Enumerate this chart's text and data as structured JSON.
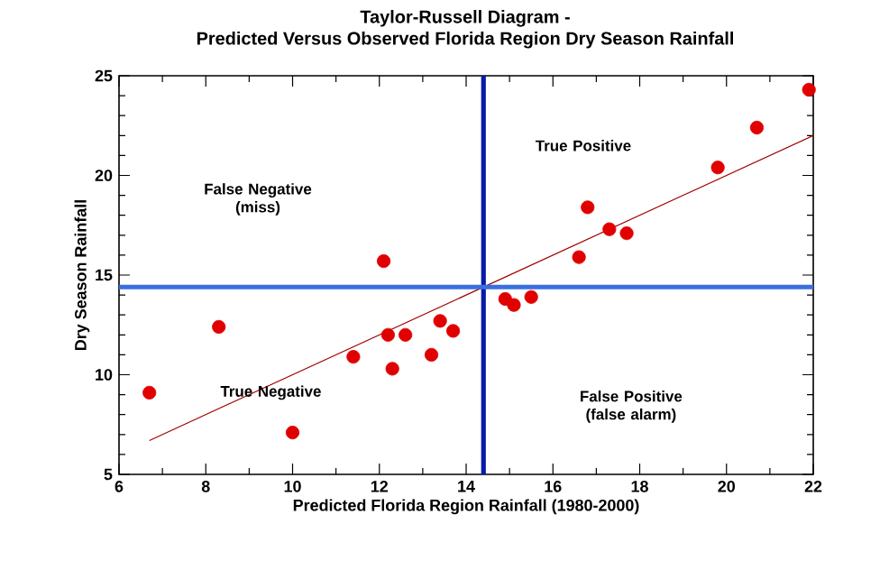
{
  "chart_data": {
    "type": "scatter",
    "title": "Taylor-Russell Diagram -",
    "subtitle": "Predicted Versus Observed Florida Region Dry Season Rainfall",
    "xlabel": "Predicted Florida Region Rainfall (1980-2000)",
    "ylabel": "Dry Season Rainfall",
    "xlim": [
      6,
      22
    ],
    "ylim": [
      5,
      25
    ],
    "xticks": [
      6,
      8,
      10,
      12,
      14,
      16,
      18,
      20,
      22
    ],
    "yticks": [
      5,
      10,
      15,
      20,
      25
    ],
    "series": [
      {
        "marker": "circle",
        "color": "#e00000",
        "x": [
          6.7,
          8.3,
          10.0,
          11.4,
          12.1,
          12.2,
          12.6,
          12.3,
          13.2,
          13.4,
          13.7,
          14.9,
          15.1,
          15.5,
          16.6,
          16.8,
          17.3,
          17.7,
          19.8,
          20.7,
          21.9
        ],
        "values": [
          9.1,
          12.4,
          7.1,
          10.9,
          15.7,
          12.0,
          12.0,
          10.3,
          11.0,
          12.7,
          12.2,
          13.8,
          13.5,
          13.9,
          15.9,
          18.4,
          17.3,
          17.1,
          20.4,
          22.4,
          24.3
        ]
      },
      {
        "type": "line",
        "marker": "none",
        "color": "#a00000",
        "x": [
          6.7,
          22.0
        ],
        "values": [
          6.7,
          22.0
        ]
      }
    ],
    "ref_lines": [
      {
        "axis": "x",
        "value": 14.4,
        "color": "#0a1aa8"
      },
      {
        "axis": "y",
        "value": 14.4,
        "color": "#3a6fe0"
      }
    ],
    "annotations": [
      "False Negative (miss)",
      "True Positive",
      "True Negative",
      "False Positive (false alarm)"
    ]
  }
}
